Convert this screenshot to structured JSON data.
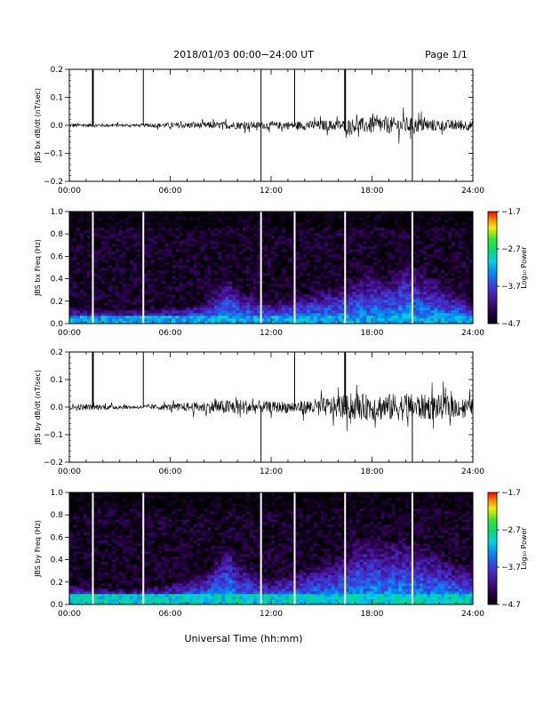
{
  "header": {
    "title": "2018/01/03  00:00−24:00 UT",
    "page": "Page 1/1"
  },
  "chart_data": [
    {
      "type": "line",
      "ylabel": "JBS bx dB/dt (nT/sec)",
      "xlim": [
        0,
        24
      ],
      "ylim": [
        -0.2,
        0.2
      ],
      "x_ticks": [
        "00:00",
        "06:00",
        "12:00",
        "18:00",
        "24:00"
      ],
      "y_ticks": [
        "−0.2",
        "−0.1",
        "0.0",
        "0.1",
        "0.2"
      ],
      "y_tick_values": [
        -0.2,
        -0.1,
        0.0,
        0.1,
        0.2
      ],
      "spikes": [
        {
          "x": 1.4,
          "ymin": 0.0,
          "ymax": 0.2
        },
        {
          "x": 4.4,
          "ymin": 0.0,
          "ymax": 0.2
        },
        {
          "x": 11.4,
          "ymin": -0.2,
          "ymax": 0.2
        },
        {
          "x": 13.4,
          "ymin": 0.0,
          "ymax": 0.2
        },
        {
          "x": 16.4,
          "ymin": -0.02,
          "ymax": 0.2
        },
        {
          "x": 20.4,
          "ymin": -0.2,
          "ymax": 0.2
        }
      ],
      "envelope": {
        "x": [
          0,
          2,
          4,
          6,
          8,
          10,
          12,
          14,
          16,
          18,
          20,
          22,
          24
        ],
        "amplitude": [
          0.008,
          0.006,
          0.005,
          0.01,
          0.012,
          0.014,
          0.012,
          0.016,
          0.02,
          0.03,
          0.03,
          0.02,
          0.018
        ]
      }
    },
    {
      "type": "heatmap",
      "ylabel": "JBS bx Freq (Hz)",
      "xlim": [
        0,
        24
      ],
      "ylim": [
        0,
        1.0
      ],
      "x_ticks": [
        "00:00",
        "06:00",
        "12:00",
        "18:00",
        "24:00"
      ],
      "y_ticks": [
        "0.0",
        "0.2",
        "0.4",
        "0.6",
        "0.8",
        "1.0"
      ],
      "colorbar": {
        "label": "Log₁₀ Power",
        "range": [
          -4.7,
          -1.7
        ],
        "ticks": [
          "−1.7",
          "−2.7",
          "−3.7",
          "−4.7"
        ],
        "tick_values": [
          -1.7,
          -2.7,
          -3.7,
          -4.7
        ]
      },
      "gaps_hours": [
        1.4,
        4.4,
        11.4,
        13.4,
        16.4,
        20.4
      ],
      "low_band": {
        "freq_max": 0.06,
        "power": -3.2
      },
      "activity": {
        "x": [
          0,
          2,
          4,
          6,
          8,
          9.5,
          10,
          12,
          14,
          16,
          17,
          18,
          19,
          20,
          21,
          22,
          23,
          24
        ],
        "height": [
          0.1,
          0.08,
          0.08,
          0.1,
          0.15,
          0.4,
          0.3,
          0.15,
          0.25,
          0.3,
          0.4,
          0.45,
          0.4,
          0.55,
          0.45,
          0.35,
          0.25,
          0.2
        ]
      }
    },
    {
      "type": "line",
      "ylabel": "JBS by dB/dt (nT/sec)",
      "xlim": [
        0,
        24
      ],
      "ylim": [
        -0.2,
        0.2
      ],
      "x_ticks": [
        "00:00",
        "06:00",
        "12:00",
        "18:00",
        "24:00"
      ],
      "y_ticks": [
        "−0.2",
        "−0.1",
        "0.0",
        "0.1",
        "0.2"
      ],
      "y_tick_values": [
        -0.2,
        -0.1,
        0.0,
        0.1,
        0.2
      ],
      "spikes": [
        {
          "x": 1.4,
          "ymin": 0.0,
          "ymax": 0.2
        },
        {
          "x": 4.4,
          "ymin": 0.0,
          "ymax": 0.2
        },
        {
          "x": 11.4,
          "ymin": -0.2,
          "ymax": 0.0
        },
        {
          "x": 13.4,
          "ymin": 0.0,
          "ymax": 0.2
        },
        {
          "x": 16.4,
          "ymin": 0.0,
          "ymax": 0.2
        },
        {
          "x": 20.4,
          "ymin": -0.2,
          "ymax": 0.0
        }
      ],
      "envelope": {
        "x": [
          0,
          2,
          4,
          6,
          8,
          10,
          12,
          14,
          16,
          18,
          20,
          22,
          24
        ],
        "amplitude": [
          0.012,
          0.01,
          0.006,
          0.012,
          0.02,
          0.03,
          0.02,
          0.025,
          0.04,
          0.05,
          0.05,
          0.045,
          0.03
        ]
      }
    },
    {
      "type": "heatmap",
      "ylabel": "JBS by Freq (Hz)",
      "xlabel": "Universal Time (hh:mm)",
      "xlim": [
        0,
        24
      ],
      "ylim": [
        0,
        1.0
      ],
      "x_ticks": [
        "00:00",
        "06:00",
        "12:00",
        "18:00",
        "24:00"
      ],
      "y_ticks": [
        "0.0",
        "0.2",
        "0.4",
        "0.6",
        "0.8",
        "1.0"
      ],
      "colorbar": {
        "label": "Log₁₀ Power",
        "range": [
          -4.7,
          -1.7
        ],
        "ticks": [
          "−1.7",
          "−2.7",
          "−3.7",
          "−4.7"
        ],
        "tick_values": [
          -1.7,
          -2.7,
          -3.7,
          -4.7
        ]
      },
      "gaps_hours": [
        1.4,
        4.4,
        11.4,
        13.4,
        16.4,
        20.4
      ],
      "low_band": {
        "freq_max": 0.1,
        "power": -3.0
      },
      "activity": {
        "x": [
          0,
          2,
          4,
          6,
          8,
          9.5,
          10,
          12,
          14,
          16,
          17,
          18,
          19,
          20,
          21,
          22,
          23,
          24
        ],
        "height": [
          0.15,
          0.1,
          0.1,
          0.15,
          0.25,
          0.55,
          0.35,
          0.2,
          0.3,
          0.4,
          0.55,
          0.6,
          0.55,
          0.6,
          0.5,
          0.45,
          0.35,
          0.3
        ]
      }
    }
  ]
}
